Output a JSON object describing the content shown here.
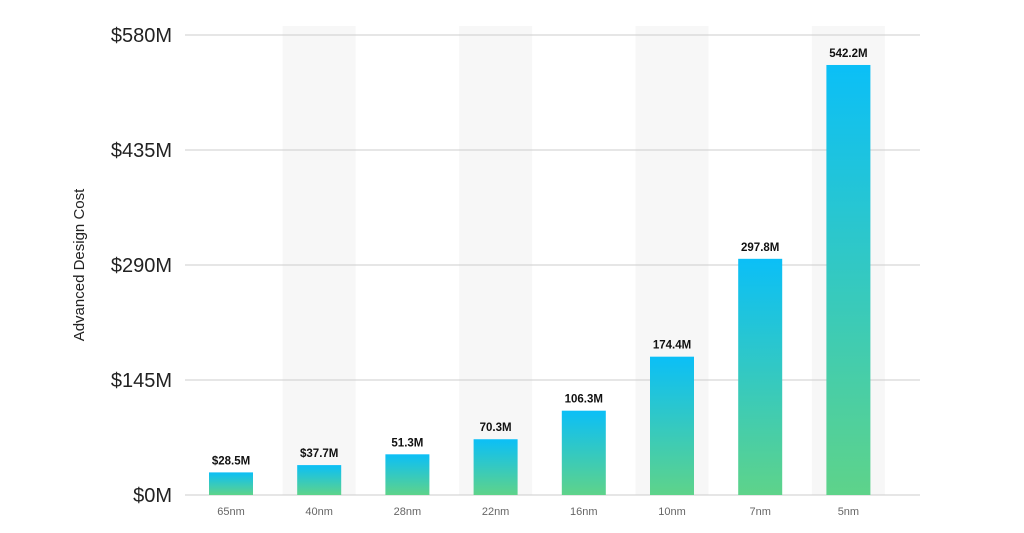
{
  "chart_data": {
    "type": "bar",
    "title": "",
    "xlabel": "",
    "ylabel": "Advanced Design Cost",
    "categories": [
      "65nm",
      "40nm",
      "28nm",
      "22nm",
      "16nm",
      "10nm",
      "7nm",
      "5nm"
    ],
    "values": [
      28.5,
      37.7,
      51.3,
      70.3,
      106.3,
      174.4,
      297.8,
      542.2
    ],
    "data_labels": [
      "$28.5M",
      "$37.7M",
      "51.3M",
      "70.3M",
      "106.3M",
      "174.4M",
      "297.8M",
      "542.2M"
    ],
    "ylim": [
      0,
      580
    ],
    "y_ticks": [
      {
        "value": 0,
        "label": "$0M"
      },
      {
        "value": 145,
        "label": "$145M"
      },
      {
        "value": 290,
        "label": "$290M"
      },
      {
        "value": 435,
        "label": "$435M"
      },
      {
        "value": 580,
        "label": "$580M"
      }
    ],
    "grid": true,
    "alternating_bands": true,
    "colors": {
      "bar_top": "#0bbff7",
      "bar_bottom": "#5ed38a",
      "gridline": "#cccccc",
      "band": "#f7f7f7"
    }
  }
}
